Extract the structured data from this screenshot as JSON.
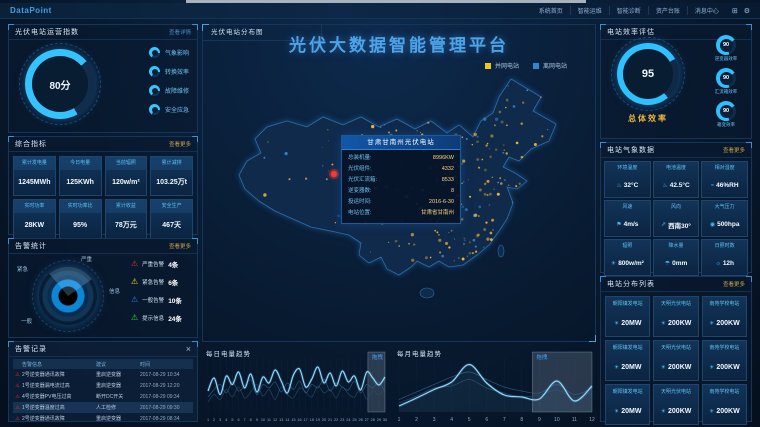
{
  "header": {
    "logo": "DataPoint",
    "nav": [
      "系统首页",
      "智能运维",
      "智能诊断",
      "资产台账",
      "消息中心"
    ]
  },
  "icons": {
    "close": "×",
    "grid": "⊞",
    "gear": "⚙",
    "alarm": "⚠",
    "station": "☀",
    "thermometer": "♨",
    "humidity": "≈",
    "wind": "⚑",
    "wind-direction": "⇗",
    "pressure": "◉",
    "irradiance": "☀",
    "rain": "☂",
    "sun-hours": "☼"
  },
  "left": {
    "operation_index": {
      "title": "光伏电站运营指数",
      "link": "查看详情",
      "gauge_value": "80分",
      "items": [
        "气象影响",
        "转换效率",
        "故障维修",
        "安全应急"
      ]
    },
    "indicators": {
      "title": "综合指标",
      "link": "查看更多",
      "cells": [
        {
          "label": "累计发电量",
          "value": "1245MWh"
        },
        {
          "label": "今日电量",
          "value": "125KWh"
        },
        {
          "label": "当前辐照",
          "value": "120w/m²"
        },
        {
          "label": "累计减排",
          "value": "103.25万t"
        },
        {
          "label": "实时功率",
          "value": "28KW"
        },
        {
          "label": "实时功率比",
          "value": "95%"
        },
        {
          "label": "累计收益",
          "value": "78万元"
        },
        {
          "label": "安全生产",
          "value": "467天"
        }
      ]
    },
    "alarm_stats": {
      "title": "告警统计",
      "link": "查看更多",
      "wheel_labels": [
        "严重",
        "紧急",
        "信息",
        "一般"
      ],
      "legend": [
        {
          "label": "严重告警",
          "count": "4条",
          "color": "#e03030"
        },
        {
          "label": "紧急告警",
          "count": "6条",
          "color": "#f5d328"
        },
        {
          "label": "一般告警",
          "count": "10条",
          "color": "#2f7fd6"
        },
        {
          "label": "提示信息",
          "count": "24条",
          "color": "#35d435"
        }
      ]
    },
    "alarm_records": {
      "title": "告警记录",
      "columns": [
        "告警信息",
        "建议",
        "时间"
      ],
      "rows": [
        {
          "info": "2号逆变器通讯故障",
          "advice": "重启逆变器",
          "time": "2017-08-29 10:34"
        },
        {
          "info": "1号逆变器漏电流过高",
          "advice": "重启逆变器",
          "time": "2017-08-29 12:20"
        },
        {
          "info": "4号逆变器PV电压过高",
          "advice": "断开DC开关",
          "time": "2017-08-29 09:34"
        },
        {
          "info": "1号逆变器温度过高",
          "advice": "人工检修",
          "time": "2017-08-29 09:30"
        },
        {
          "info": "2号逆变器通讯故障",
          "advice": "重启逆变器",
          "time": "2017-08-29 08:34"
        }
      ]
    }
  },
  "center": {
    "map_panel_title": "光伏电站分布图",
    "main_title": "光伏大数据智能管理平台",
    "legend": [
      {
        "label": "并网电站",
        "color": "#f2c518"
      },
      {
        "label": "离网电站",
        "color": "#2e86d5"
      }
    ],
    "tooltip": {
      "title": "甘肃甘南州光伏电站",
      "lines": [
        {
          "label": "总装机量:",
          "value": "8996KW"
        },
        {
          "label": "光伏组件:",
          "value": "4332"
        },
        {
          "label": "光伏汇流箱:",
          "value": "8533"
        },
        {
          "label": "逆变器数:",
          "value": "8"
        },
        {
          "label": "投运时间:",
          "value": "2016-6-30"
        },
        {
          "label": "电站位置:",
          "value": "甘肃省甘南州"
        }
      ]
    }
  },
  "right": {
    "efficiency": {
      "title": "电站效率评估",
      "main_gauge": {
        "value": "95",
        "label": "总体效率"
      },
      "sub_gauges": [
        {
          "value": "90",
          "label": "逆变器效率"
        },
        {
          "value": "90",
          "label": "汇流箱效率"
        },
        {
          "value": "90",
          "label": "箱变效率"
        }
      ]
    },
    "weather": {
      "title": "电站气象数据",
      "link": "查看更多",
      "cells": [
        {
          "label": "环境温度",
          "value": "32°C",
          "icon": "thermometer"
        },
        {
          "label": "电池温度",
          "value": "42.5°C",
          "icon": "thermometer"
        },
        {
          "label": "相对湿度",
          "value": "46%RH",
          "icon": "humidity"
        },
        {
          "label": "风速",
          "value": "4m/s",
          "icon": "wind"
        },
        {
          "label": "风向",
          "value": "西南30°",
          "icon": "wind-direction"
        },
        {
          "label": "大气压力",
          "value": "500hpa",
          "icon": "pressure"
        },
        {
          "label": "辐照",
          "value": "800w/m²",
          "icon": "irradiance"
        },
        {
          "label": "降水量",
          "value": "0mm",
          "icon": "rain"
        },
        {
          "label": "日照时数",
          "value": "12h",
          "icon": "sun-hours"
        }
      ]
    },
    "stations": {
      "title": "电站分布列表",
      "link": "查看更多",
      "cards": [
        {
          "name": "朝阳镇发电站",
          "value": "20MW"
        },
        {
          "name": "天明光伏电站",
          "value": "200KW"
        },
        {
          "name": "南苑学校电站",
          "value": "200KW"
        },
        {
          "name": "朝阳镇发电站",
          "value": "20MW"
        },
        {
          "name": "天明光伏电站",
          "value": "200KW"
        },
        {
          "name": "南苑学校电站",
          "value": "200KW"
        },
        {
          "name": "朝阳镇发电站",
          "value": "20MW"
        },
        {
          "name": "天明光伏电站",
          "value": "200KW"
        },
        {
          "name": "南苑学校电站",
          "value": "200KW"
        }
      ]
    }
  },
  "chart_data": [
    {
      "type": "line",
      "title": "每日电量趋势",
      "x": [
        1,
        2,
        3,
        4,
        5,
        6,
        7,
        8,
        9,
        10,
        11,
        12,
        13,
        14,
        15,
        16,
        17,
        18,
        19,
        20,
        21,
        22,
        23,
        24,
        25,
        26,
        27,
        28,
        29,
        30
      ],
      "series": [
        {
          "values": [
            42,
            68,
            35,
            72,
            55,
            80,
            48,
            76,
            40,
            70,
            58,
            84,
            62,
            38,
            74,
            86,
            50,
            66,
            90,
            58,
            78,
            52,
            82,
            60,
            72,
            44,
            80,
            68,
            54,
            70
          ]
        },
        {
          "values": [
            30,
            45,
            55,
            38,
            60,
            42,
            52,
            64,
            35,
            55,
            48,
            60,
            40,
            58,
            45,
            62,
            38,
            55,
            48,
            66,
            42,
            58,
            50,
            44,
            62,
            38,
            55,
            48,
            60,
            40
          ]
        },
        {
          "values": [
            20,
            35,
            25,
            45,
            30,
            50,
            28,
            40,
            55,
            32,
            45,
            25,
            50,
            35,
            28,
            48,
            40,
            30,
            52,
            38,
            45,
            28,
            50,
            36,
            30,
            48,
            26,
            42,
            35,
            45
          ]
        }
      ],
      "colors": [
        "#8fd8ff",
        "#35648f",
        "#27506f"
      ],
      "ylim": [
        0,
        100
      ],
      "grid": true,
      "brush": {
        "range": [
          27.2,
          30
        ],
        "label": "拖拽"
      }
    },
    {
      "type": "line",
      "title": "每月电量趋势",
      "x": [
        1,
        2,
        3,
        4,
        5,
        6,
        7,
        8,
        9,
        10,
        11,
        12
      ],
      "series": [
        {
          "values": [
            12,
            28,
            45,
            60,
            95,
            58,
            34,
            30,
            26,
            62,
            22,
            52
          ]
        },
        {
          "values": [
            25,
            40,
            55,
            70,
            80,
            65,
            50,
            42,
            38,
            55,
            35,
            48
          ]
        },
        {
          "values": [
            18,
            32,
            48,
            52,
            65,
            48,
            38,
            30,
            34,
            44,
            28,
            40
          ]
        }
      ],
      "colors": [
        "#8fd8ff",
        "#35648f",
        "#27506f"
      ],
      "ylim": [
        0,
        100
      ],
      "grid": true,
      "fill_main": true,
      "brush": {
        "range": [
          8.6,
          12
        ],
        "label": "拖拽"
      }
    }
  ]
}
